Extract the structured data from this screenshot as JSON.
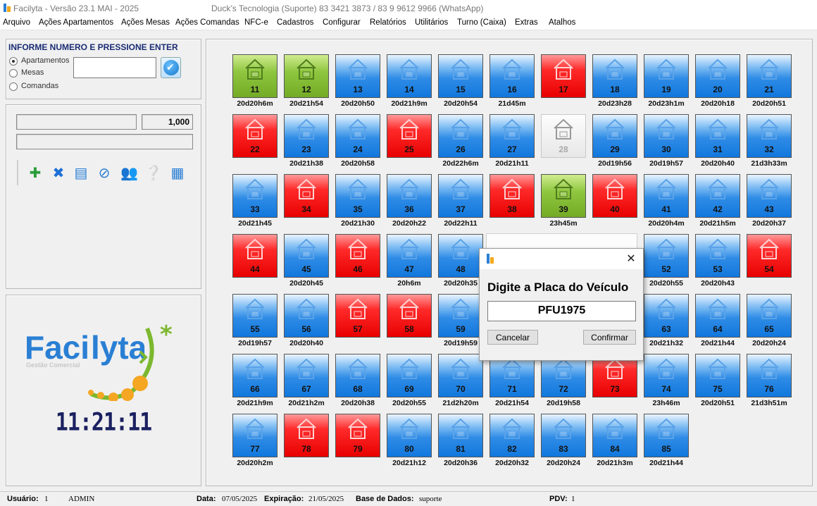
{
  "titlebar": {
    "title": "Facilyta - Versão 23.1 MAI - 2025",
    "support": "Duck’s Tecnologia (Suporte)  83 3421 3873 / 83 9 9612 9966 (WhatsApp)"
  },
  "menu": [
    "Arquivo",
    "Ações Apartamentos",
    "Ações Mesas",
    "Ações Comandas",
    "NFC-e",
    "Cadastros",
    "Configurar",
    "Relatórios",
    "Utilitários",
    "Turno (Caixa)",
    "Extras",
    "Atalhos"
  ],
  "entry": {
    "header": "INFORME NUMERO E PRESSIONE ENTER",
    "options": [
      {
        "label": "Apartamentos",
        "selected": true
      },
      {
        "label": "Mesas",
        "selected": false
      },
      {
        "label": "Comandas",
        "selected": false
      }
    ],
    "value": ""
  },
  "quantity": "1,000",
  "toolbar_icons": [
    "add-item-icon",
    "remove-item-icon",
    "receipt-icon",
    "cancel-icon",
    "users-icon",
    "help-icon",
    "cash-register-icon"
  ],
  "logo": {
    "brand_blue": "Faci",
    "brand_green": "lyta",
    "tagline": "Gestão Comercial"
  },
  "clock": "11:21:11",
  "colors": {
    "blue": "#1177dd",
    "red": "#e80000",
    "green": "#8ec63f",
    "free": "#e7e7e7"
  },
  "rooms": [
    {
      "n": "11",
      "s": "green",
      "t": "20d20h6m"
    },
    {
      "n": "12",
      "s": "green",
      "t": "20d21h54"
    },
    {
      "n": "13",
      "s": "blue",
      "t": "20d20h50"
    },
    {
      "n": "14",
      "s": "blue",
      "t": "20d21h9m"
    },
    {
      "n": "15",
      "s": "blue",
      "t": "20d20h54"
    },
    {
      "n": "16",
      "s": "blue",
      "t": "21d45m"
    },
    {
      "n": "17",
      "s": "red",
      "t": ""
    },
    {
      "n": "18",
      "s": "blue",
      "t": "20d23h28"
    },
    {
      "n": "19",
      "s": "blue",
      "t": "20d23h1m"
    },
    {
      "n": "20",
      "s": "blue",
      "t": "20d20h18"
    },
    {
      "n": "21",
      "s": "blue",
      "t": "20d20h51"
    },
    {
      "n": "22",
      "s": "red",
      "t": ""
    },
    {
      "n": "23",
      "s": "blue",
      "t": "20d21h38"
    },
    {
      "n": "24",
      "s": "blue",
      "t": "20d20h58"
    },
    {
      "n": "25",
      "s": "red",
      "t": ""
    },
    {
      "n": "26",
      "s": "blue",
      "t": "20d22h6m"
    },
    {
      "n": "27",
      "s": "blue",
      "t": "20d21h11"
    },
    {
      "n": "28",
      "s": "white",
      "t": ""
    },
    {
      "n": "29",
      "s": "blue",
      "t": "20d19h56"
    },
    {
      "n": "30",
      "s": "blue",
      "t": "20d19h57"
    },
    {
      "n": "31",
      "s": "blue",
      "t": "20d20h40"
    },
    {
      "n": "32",
      "s": "blue",
      "t": "21d3h33m"
    },
    {
      "n": "33",
      "s": "blue",
      "t": "20d21h45"
    },
    {
      "n": "34",
      "s": "red",
      "t": ""
    },
    {
      "n": "35",
      "s": "blue",
      "t": "20d21h30"
    },
    {
      "n": "36",
      "s": "blue",
      "t": "20d20h22"
    },
    {
      "n": "37",
      "s": "blue",
      "t": "20d22h11"
    },
    {
      "n": "38",
      "s": "red",
      "t": ""
    },
    {
      "n": "39",
      "s": "green",
      "t": "23h45m"
    },
    {
      "n": "40",
      "s": "red",
      "t": ""
    },
    {
      "n": "41",
      "s": "blue",
      "t": "20d20h4m"
    },
    {
      "n": "42",
      "s": "blue",
      "t": "20d21h5m"
    },
    {
      "n": "43",
      "s": "blue",
      "t": "20d20h37"
    },
    {
      "n": "44",
      "s": "red",
      "t": ""
    },
    {
      "n": "45",
      "s": "blue",
      "t": "20d20h45"
    },
    {
      "n": "46",
      "s": "red",
      "t": ""
    },
    {
      "n": "47",
      "s": "blue",
      "t": "20h6m"
    },
    {
      "n": "48",
      "s": "blue",
      "t": "20d20h35"
    },
    {
      "n": "",
      "s": "hidden",
      "t": ""
    },
    {
      "n": "",
      "s": "hidden",
      "t": ""
    },
    {
      "n": "",
      "s": "hidden",
      "t": ""
    },
    {
      "n": "52",
      "s": "blue",
      "t": "20d20h55"
    },
    {
      "n": "53",
      "s": "blue",
      "t": "20d20h43"
    },
    {
      "n": "54",
      "s": "red",
      "t": ""
    },
    {
      "n": "55",
      "s": "blue",
      "t": "20d19h57"
    },
    {
      "n": "56",
      "s": "blue",
      "t": "20d20h40"
    },
    {
      "n": "57",
      "s": "red",
      "t": ""
    },
    {
      "n": "58",
      "s": "red",
      "t": ""
    },
    {
      "n": "59",
      "s": "blue",
      "t": "20d19h59"
    },
    {
      "n": "",
      "s": "hidden",
      "t": ""
    },
    {
      "n": "",
      "s": "hidden",
      "t": ""
    },
    {
      "n": "",
      "s": "hidden",
      "t": ""
    },
    {
      "n": "63",
      "s": "blue",
      "t": "20d21h32"
    },
    {
      "n": "64",
      "s": "blue",
      "t": "20d21h44"
    },
    {
      "n": "65",
      "s": "blue",
      "t": "20d20h24"
    },
    {
      "n": "66",
      "s": "blue",
      "t": "20d21h9m"
    },
    {
      "n": "67",
      "s": "blue",
      "t": "20d21h2m"
    },
    {
      "n": "68",
      "s": "blue",
      "t": "20d20h38"
    },
    {
      "n": "69",
      "s": "blue",
      "t": "20d20h55"
    },
    {
      "n": "70",
      "s": "blue",
      "t": "21d2h20m"
    },
    {
      "n": "71",
      "s": "blue",
      "t": "20d21h54"
    },
    {
      "n": "72",
      "s": "blue",
      "t": "20d19h58"
    },
    {
      "n": "73",
      "s": "red",
      "t": ""
    },
    {
      "n": "74",
      "s": "blue",
      "t": "23h46m"
    },
    {
      "n": "75",
      "s": "blue",
      "t": "20d20h51"
    },
    {
      "n": "76",
      "s": "blue",
      "t": "21d3h51m"
    },
    {
      "n": "77",
      "s": "blue",
      "t": "20d20h2m"
    },
    {
      "n": "78",
      "s": "red",
      "t": ""
    },
    {
      "n": "79",
      "s": "red",
      "t": ""
    },
    {
      "n": "80",
      "s": "blue",
      "t": "20d21h12"
    },
    {
      "n": "81",
      "s": "blue",
      "t": "20d20h36"
    },
    {
      "n": "82",
      "s": "blue",
      "t": "20d20h32"
    },
    {
      "n": "83",
      "s": "blue",
      "t": "20d20h24"
    },
    {
      "n": "84",
      "s": "blue",
      "t": "20d21h3m"
    },
    {
      "n": "85",
      "s": "blue",
      "t": "20d21h44"
    }
  ],
  "dialog": {
    "prompt": "Digite a Placa do Veículo",
    "value": "PFU1975",
    "cancel": "Cancelar",
    "confirm": "Confirmar"
  },
  "status": {
    "user_label": "Usuário:",
    "user_id": "1",
    "user_name": "ADMIN",
    "date_label": "Data:",
    "date": "07/05/2025",
    "exp_label": "Expiração:",
    "exp": "21/05/2025",
    "db_label": "Base de Dados:",
    "db": "suporte",
    "pdv_label": "PDV:",
    "pdv": "1"
  }
}
